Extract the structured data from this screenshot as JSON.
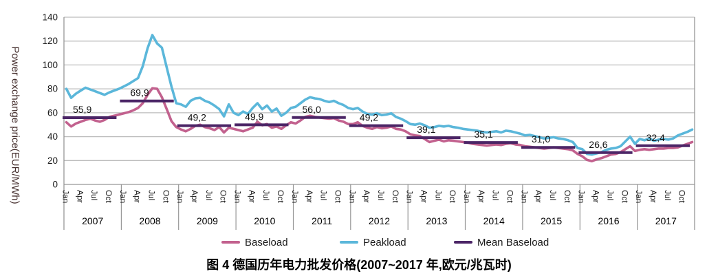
{
  "figure": {
    "y_axis_title": "Power exchange price(EUR/MWh)",
    "caption": "图 4  德国历年电力批发价格(2007~2017 年,欧元/兆瓦时)"
  },
  "legend": {
    "items": [
      {
        "label": "Baseload",
        "color": "#c2618e"
      },
      {
        "label": "Peakload",
        "color": "#5bb7da"
      },
      {
        "label": "Mean Baseload",
        "color": "#4b2566"
      }
    ]
  },
  "chart_data": {
    "type": "line",
    "title": "",
    "xlabel": "",
    "ylabel": "Power exchange price(EUR/MWh)",
    "ylim": [
      0,
      140
    ],
    "y_tick_step": 20,
    "grid": true,
    "legend_position": "bottom",
    "years": [
      2007,
      2008,
      2009,
      2010,
      2011,
      2012,
      2013,
      2014,
      2015,
      2016,
      2017
    ],
    "month_tick_labels": [
      "Jan",
      "Apr",
      "Jul",
      "Oct"
    ],
    "axis_color": "#969696",
    "grid_color": "#bcbcbc",
    "series": [
      {
        "name": "Baseload",
        "kind": "monthly",
        "color": "#c2618e",
        "values": [
          52,
          48.5,
          51,
          52.5,
          54,
          55,
          53.5,
          52.5,
          54,
          56.5,
          57.5,
          58.5,
          59.5,
          60.5,
          62,
          64,
          68,
          75,
          80.5,
          80,
          73,
          63,
          53,
          48,
          46,
          44.5,
          46.5,
          49,
          50,
          48,
          47,
          45.5,
          48,
          43.5,
          47.5,
          46.5,
          45.5,
          44.5,
          46,
          47.5,
          52.5,
          49.5,
          50.5,
          47.5,
          48.5,
          46.5,
          49.5,
          52,
          51,
          53.5,
          56.5,
          57.5,
          56.5,
          56,
          55.5,
          55,
          55.5,
          53.5,
          52.5,
          50.5,
          50.5,
          52,
          49,
          47.5,
          46.5,
          48,
          47,
          47.5,
          48.5,
          46.5,
          46,
          44.5,
          42,
          41,
          40.5,
          38,
          35.5,
          36.5,
          37.5,
          36,
          37,
          36.5,
          36,
          35.5,
          35,
          34,
          33.5,
          33,
          32.5,
          33,
          33.5,
          33,
          34,
          34.5,
          33.5,
          33,
          32,
          31.5,
          31,
          30.5,
          30,
          30.5,
          31,
          30.5,
          30,
          29.5,
          28.5,
          25.5,
          23.5,
          20.5,
          19.5,
          21,
          22,
          23.5,
          25,
          25.5,
          27,
          29.5,
          32,
          28,
          29,
          29.5,
          29,
          29.5,
          30,
          30,
          30.5,
          30.5,
          31,
          32.5,
          34,
          35.5
        ]
      },
      {
        "name": "Peakload",
        "kind": "monthly",
        "color": "#5bb7da",
        "values": [
          80,
          72.5,
          76,
          78.5,
          81,
          79.5,
          78,
          76.5,
          75,
          77,
          78.5,
          80,
          82,
          84,
          86.5,
          89,
          99,
          114,
          125,
          118,
          114.5,
          98,
          82,
          68,
          67,
          65,
          70,
          72,
          72.5,
          70,
          68.5,
          66,
          63,
          57,
          67,
          60,
          58,
          61,
          59,
          64,
          68,
          63,
          66,
          61,
          63.5,
          57.5,
          60,
          64,
          65,
          68,
          71,
          73,
          72,
          71.5,
          70,
          69,
          70,
          68,
          66.5,
          64,
          63,
          64,
          61,
          59,
          58.5,
          59.5,
          58,
          58.5,
          59.5,
          56.5,
          55,
          53,
          50.5,
          50,
          51,
          49.5,
          47.5,
          48,
          49,
          48.5,
          49,
          48,
          47.5,
          46.5,
          46,
          45.5,
          45,
          44,
          43.5,
          44,
          44.5,
          43.5,
          45,
          44.5,
          43.5,
          42.5,
          41,
          41.5,
          40.5,
          39.5,
          38.5,
          39,
          39.5,
          38.5,
          38,
          37,
          35.5,
          30.5,
          29.5,
          25.5,
          25,
          26,
          27,
          29,
          30,
          30.5,
          32,
          36,
          40,
          34,
          38,
          37,
          38.5,
          36.5,
          37.5,
          38,
          37.5,
          38.5,
          41,
          42.5,
          44,
          46
        ]
      },
      {
        "name": "Mean Baseload",
        "kind": "annual-step",
        "color": "#4b2566",
        "values": [
          55.9,
          69.9,
          49.2,
          49.9,
          56.0,
          49.2,
          39.1,
          35.1,
          31.0,
          26.6,
          32.4
        ],
        "labels": [
          "55,9",
          "69,9",
          "49,2",
          "49,9",
          "56,0",
          "49,2",
          "39,1",
          "35,1",
          "31,0",
          "26,6",
          "32,4"
        ]
      }
    ]
  }
}
